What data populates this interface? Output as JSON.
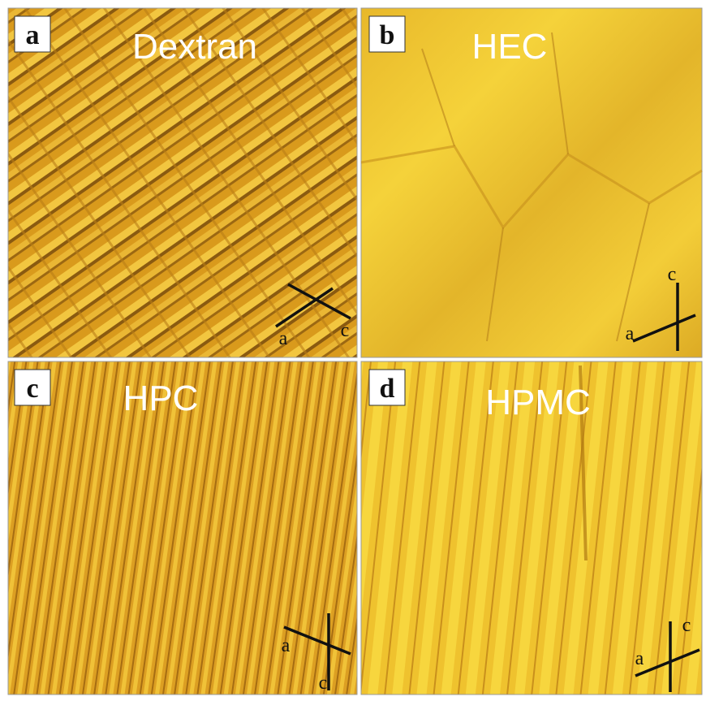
{
  "panels": [
    {
      "letter": "a",
      "title": "Dextran",
      "axis_labels": [
        "a",
        "c"
      ]
    },
    {
      "letter": "b",
      "title": "HEC",
      "axis_labels": [
        "c",
        "a"
      ]
    },
    {
      "letter": "c",
      "title": "HPC",
      "axis_labels": [
        "a",
        "c"
      ]
    },
    {
      "letter": "d",
      "title": "HPMC",
      "axis_labels": [
        "c",
        "a"
      ]
    }
  ]
}
